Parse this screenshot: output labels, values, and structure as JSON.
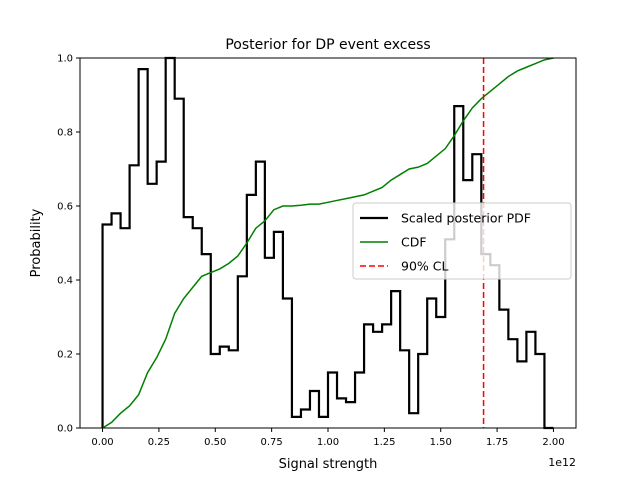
{
  "chart_data": {
    "type": "line",
    "title": "Posterior for DP event excess",
    "xlabel": "Signal strength",
    "ylabel": "Probability",
    "x_offset_label": "1e12",
    "xlim": [
      -0.1,
      2.1
    ],
    "ylim": [
      0.0,
      1.0
    ],
    "x_ticks": [
      0.0,
      0.25,
      0.5,
      0.75,
      1.0,
      1.25,
      1.5,
      1.75,
      2.0
    ],
    "x_tick_labels": [
      "0.00",
      "0.25",
      "0.50",
      "0.75",
      "1.00",
      "1.25",
      "1.50",
      "1.75",
      "2.00"
    ],
    "y_ticks": [
      0.0,
      0.2,
      0.4,
      0.6,
      0.8,
      1.0
    ],
    "y_tick_labels": [
      "0.0",
      "0.2",
      "0.4",
      "0.6",
      "0.8",
      "1.0"
    ],
    "grid": false,
    "legend_position": "center-right",
    "series": [
      {
        "name": "Scaled posterior PDF",
        "style": "step",
        "color": "#000000",
        "bin_edges": [
          0.0,
          0.04,
          0.08,
          0.12,
          0.16,
          0.2,
          0.24,
          0.28,
          0.32,
          0.36,
          0.4,
          0.44,
          0.48,
          0.52,
          0.56,
          0.6,
          0.64,
          0.68,
          0.72,
          0.76,
          0.8,
          0.84,
          0.88,
          0.92,
          0.96,
          1.0,
          1.04,
          1.08,
          1.12,
          1.16,
          1.2,
          1.24,
          1.28,
          1.32,
          1.36,
          1.4,
          1.44,
          1.48,
          1.52,
          1.56,
          1.6,
          1.64,
          1.68,
          1.72,
          1.76,
          1.8,
          1.84,
          1.88,
          1.92,
          1.96
        ],
        "values": [
          0.55,
          0.58,
          0.54,
          0.71,
          0.97,
          0.66,
          0.72,
          1.0,
          0.89,
          0.57,
          0.54,
          0.47,
          0.2,
          0.22,
          0.21,
          0.41,
          0.63,
          0.72,
          0.46,
          0.53,
          0.35,
          0.03,
          0.05,
          0.1,
          0.03,
          0.15,
          0.08,
          0.07,
          0.15,
          0.28,
          0.26,
          0.28,
          0.37,
          0.21,
          0.04,
          0.2,
          0.35,
          0.3,
          0.51,
          0.87,
          0.67,
          0.74,
          0.47,
          0.44,
          0.32,
          0.24,
          0.18,
          0.26,
          0.2,
          0.0
        ]
      },
      {
        "name": "CDF",
        "style": "line",
        "color": "#008000",
        "x": [
          0.0,
          0.04,
          0.08,
          0.12,
          0.16,
          0.2,
          0.24,
          0.28,
          0.32,
          0.36,
          0.4,
          0.44,
          0.48,
          0.52,
          0.56,
          0.6,
          0.64,
          0.68,
          0.72,
          0.76,
          0.8,
          0.84,
          0.88,
          0.92,
          0.96,
          1.0,
          1.04,
          1.08,
          1.12,
          1.16,
          1.2,
          1.24,
          1.28,
          1.32,
          1.36,
          1.4,
          1.44,
          1.48,
          1.52,
          1.56,
          1.6,
          1.64,
          1.68,
          1.72,
          1.76,
          1.8,
          1.84,
          1.88,
          1.92,
          1.96,
          2.0
        ],
        "y": [
          0.0,
          0.015,
          0.04,
          0.06,
          0.09,
          0.15,
          0.19,
          0.24,
          0.31,
          0.35,
          0.38,
          0.41,
          0.42,
          0.43,
          0.445,
          0.465,
          0.5,
          0.54,
          0.56,
          0.59,
          0.6,
          0.6,
          0.602,
          0.605,
          0.605,
          0.61,
          0.615,
          0.62,
          0.625,
          0.63,
          0.64,
          0.65,
          0.67,
          0.685,
          0.7,
          0.705,
          0.715,
          0.735,
          0.755,
          0.79,
          0.83,
          0.865,
          0.89,
          0.91,
          0.93,
          0.95,
          0.965,
          0.975,
          0.985,
          0.995,
          1.0
        ]
      },
      {
        "name": "90% CL",
        "style": "vline-dashed",
        "color": "#ff0000",
        "x": 1.69
      }
    ]
  }
}
